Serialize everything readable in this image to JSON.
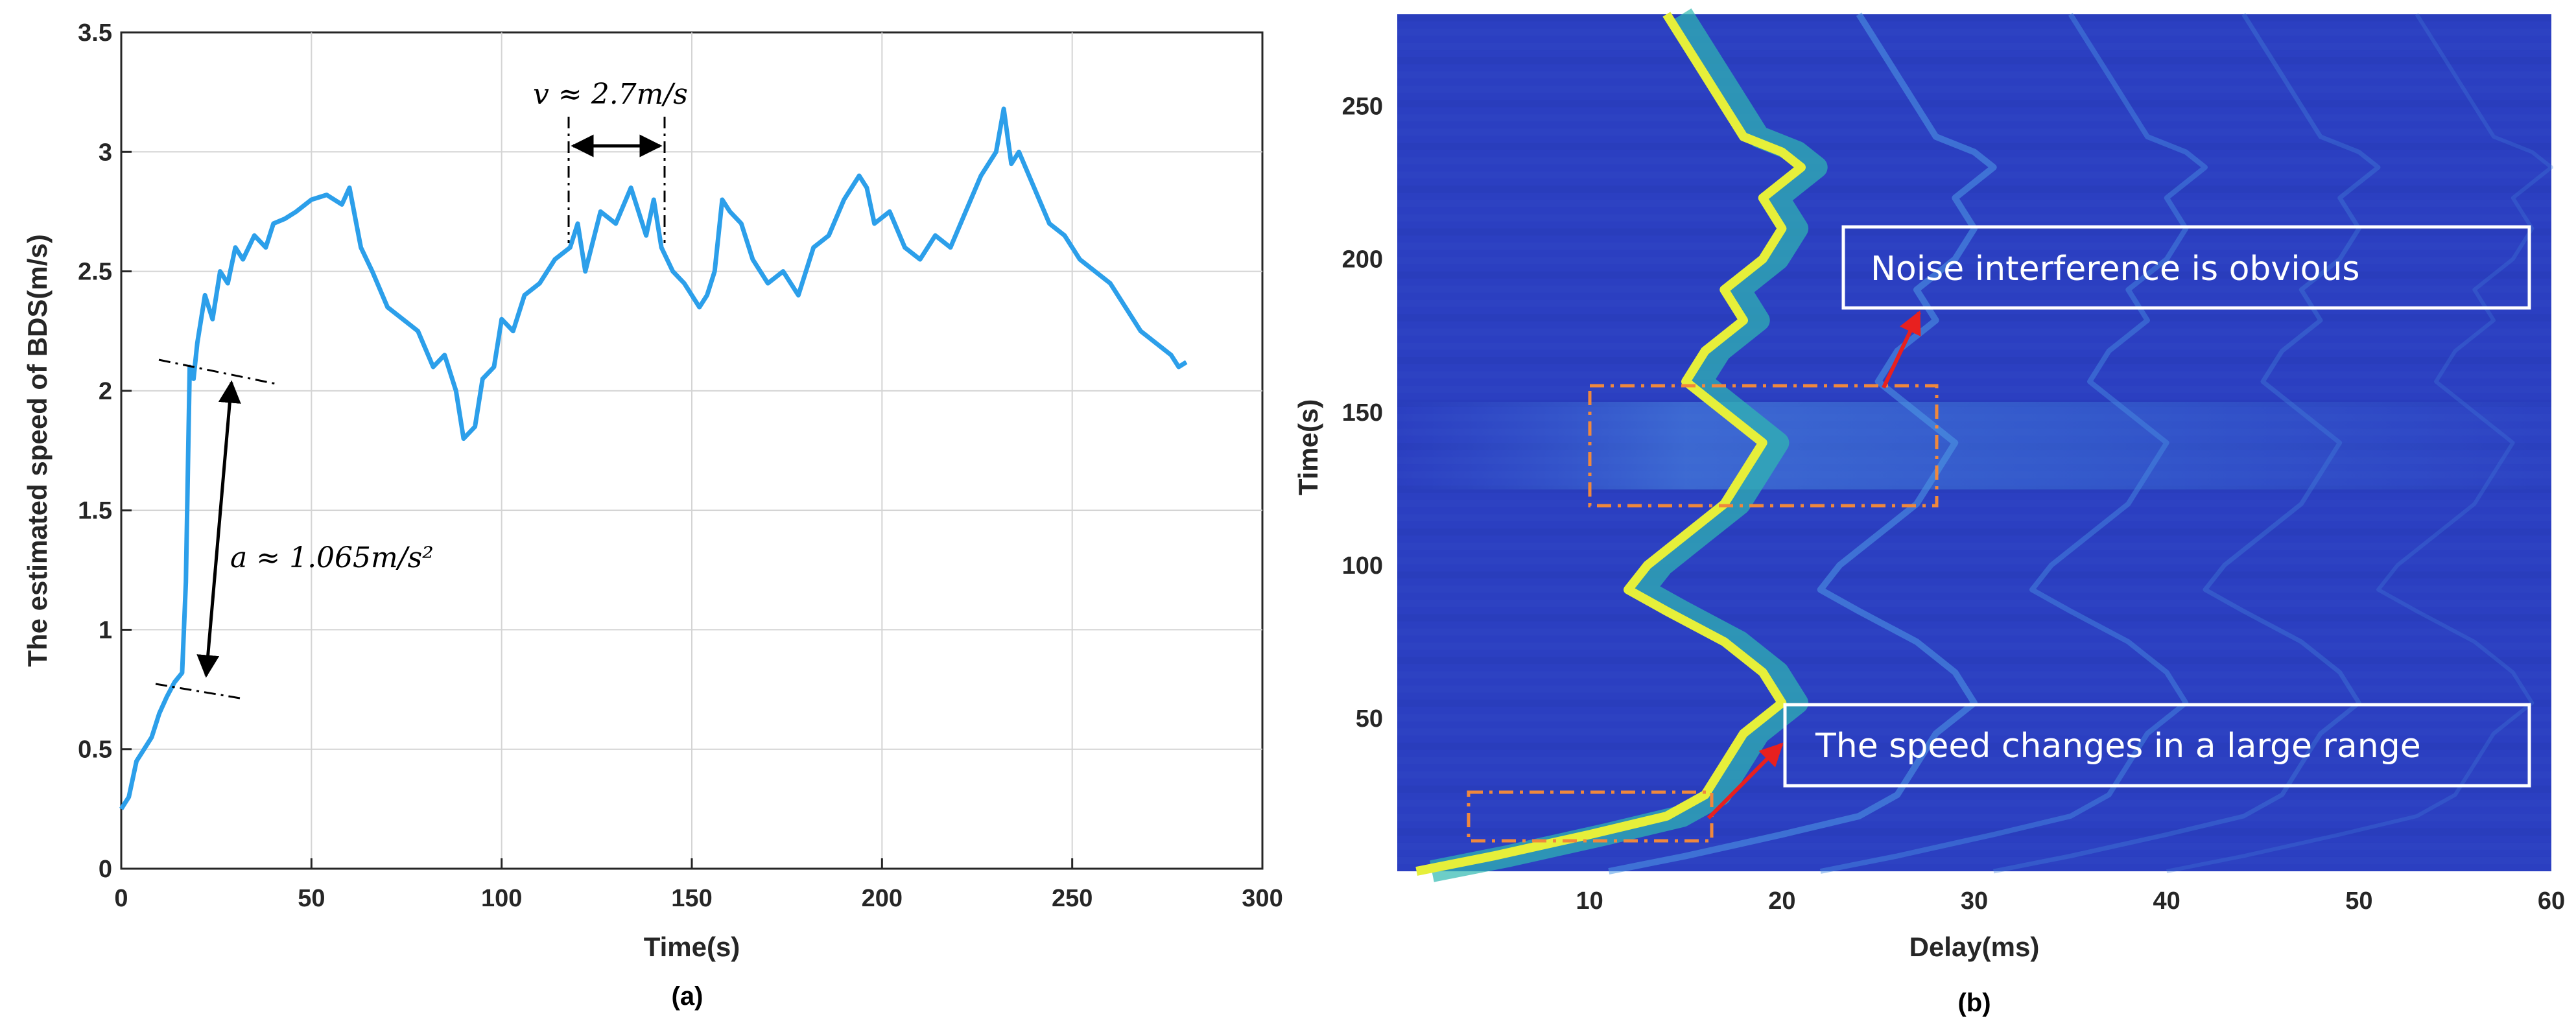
{
  "chart_data": [
    {
      "type": "line",
      "xlabel": "Time(s)",
      "ylabel": "The estimated speed of BDS(m/s)",
      "caption": "(a)",
      "xlim": [
        0,
        300
      ],
      "ylim": [
        0,
        3.5
      ],
      "xticks": [
        "0",
        "50",
        "100",
        "150",
        "200",
        "250",
        "300"
      ],
      "yticks": [
        "0",
        "0.5",
        "1",
        "1.5",
        "2",
        "2.5",
        "3",
        "3.5"
      ],
      "grid": true,
      "line_color": "#2C9FEA",
      "series": [
        {
          "x": [
            0,
            2,
            4,
            6,
            8,
            10,
            12,
            14,
            16,
            17,
            18,
            19,
            20,
            22,
            24,
            26,
            28,
            30,
            32,
            35,
            38,
            40,
            43,
            46,
            50,
            54,
            58,
            60,
            63,
            66,
            70,
            74,
            78,
            82,
            85,
            88,
            90,
            93,
            95,
            98,
            100,
            103,
            106,
            110,
            114,
            118,
            120,
            122,
            126,
            130,
            134,
            138,
            140,
            142,
            145,
            148,
            150,
            152,
            154,
            156,
            158,
            160,
            163,
            166,
            170,
            174,
            178,
            182,
            186,
            190,
            194,
            196,
            198,
            202,
            206,
            210,
            214,
            218,
            222,
            226,
            230,
            232,
            234,
            236,
            240,
            244,
            248,
            252,
            256,
            260,
            264,
            268,
            272,
            276,
            278,
            280
          ],
          "y": [
            0.25,
            0.3,
            0.45,
            0.5,
            0.55,
            0.65,
            0.72,
            0.78,
            0.82,
            1.2,
            2.1,
            2.05,
            2.2,
            2.4,
            2.3,
            2.5,
            2.45,
            2.6,
            2.55,
            2.65,
            2.6,
            2.7,
            2.72,
            2.75,
            2.8,
            2.82,
            2.78,
            2.85,
            2.6,
            2.5,
            2.35,
            2.3,
            2.25,
            2.1,
            2.15,
            2.0,
            1.8,
            1.85,
            2.05,
            2.1,
            2.3,
            2.25,
            2.4,
            2.45,
            2.55,
            2.6,
            2.7,
            2.5,
            2.75,
            2.7,
            2.85,
            2.65,
            2.8,
            2.6,
            2.5,
            2.45,
            2.4,
            2.35,
            2.4,
            2.5,
            2.8,
            2.75,
            2.7,
            2.55,
            2.45,
            2.5,
            2.4,
            2.6,
            2.65,
            2.8,
            2.9,
            2.85,
            2.7,
            2.75,
            2.6,
            2.55,
            2.65,
            2.6,
            2.75,
            2.9,
            3.0,
            3.18,
            2.95,
            3.0,
            2.85,
            2.7,
            2.65,
            2.55,
            2.5,
            2.45,
            2.35,
            2.25,
            2.2,
            2.15,
            2.1,
            2.12
          ]
        }
      ],
      "annotations": {
        "velocity": "v ≈ 2.7m/s",
        "acceleration": "a ≈ 1.065m/s²"
      }
    },
    {
      "type": "heatmap",
      "xlabel": "Delay(ms)",
      "ylabel": "Time(s)",
      "caption": "(b)",
      "xlim": [
        0,
        60
      ],
      "ylim": [
        0,
        280
      ],
      "xticks": [
        "10",
        "20",
        "30",
        "40",
        "50",
        "60"
      ],
      "yticks": [
        "50",
        "100",
        "150",
        "200",
        "250"
      ],
      "background_color": "#2B3FC1",
      "ridge": {
        "time": [
          0,
          5,
          12,
          18,
          25,
          35,
          45,
          55,
          65,
          75,
          85,
          92,
          100,
          110,
          120,
          130,
          140,
          150,
          160,
          170,
          180,
          190,
          200,
          210,
          220,
          230,
          235,
          240,
          250,
          260,
          270,
          280
        ],
        "delay": [
          1,
          5,
          10,
          14,
          16,
          17,
          18,
          20,
          19,
          17,
          14,
          12,
          13,
          15,
          17,
          18,
          19,
          17,
          15,
          16,
          18,
          17,
          19,
          20,
          19,
          21,
          20,
          18,
          17,
          16,
          15,
          14
        ]
      },
      "annotations": {
        "noise": "Noise interference is obvious",
        "speed": "The speed changes in a large range"
      },
      "annotation_box_color": "#FFFFFF",
      "highlight_box_color": "#F0883C",
      "arrow_color": "#E8201F"
    }
  ]
}
